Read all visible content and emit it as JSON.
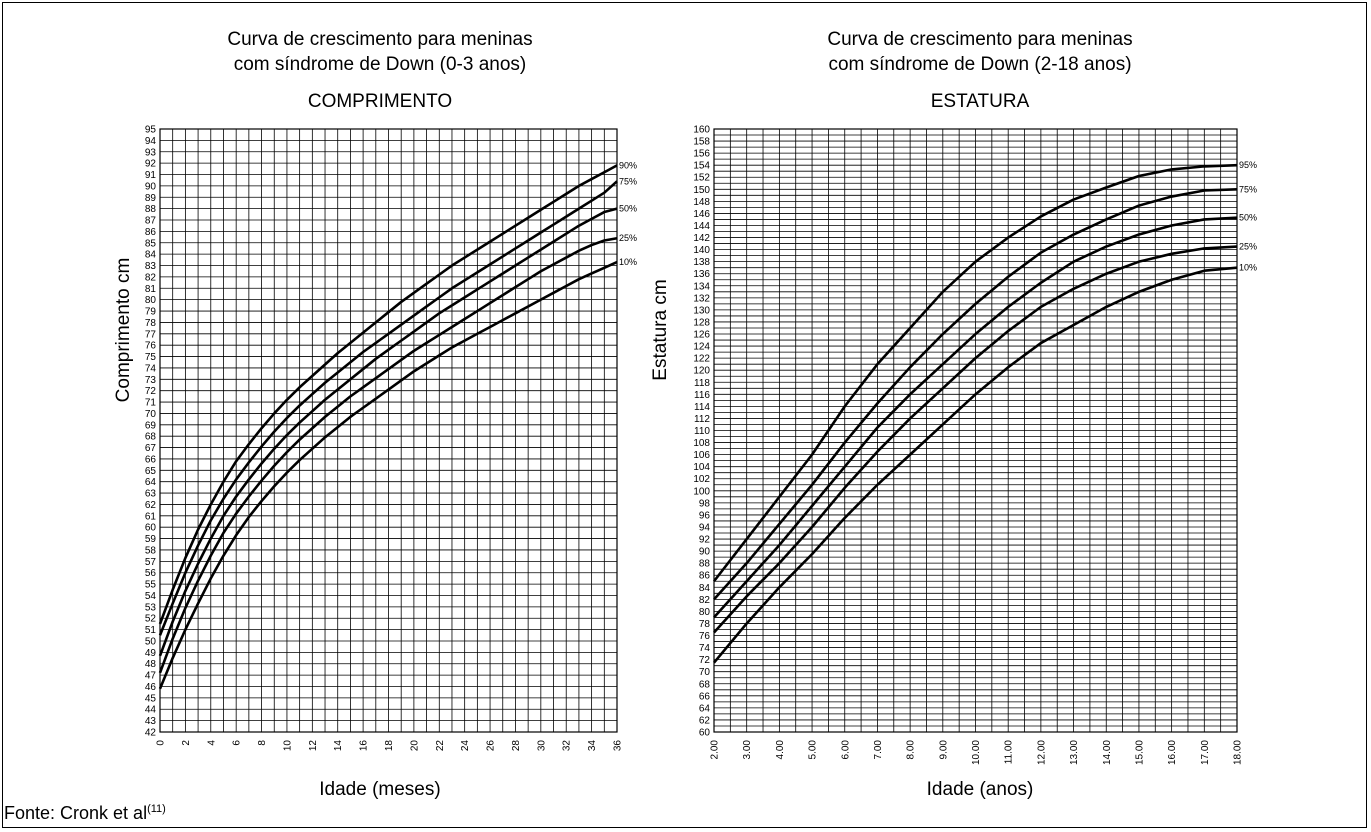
{
  "source": {
    "text": "Fonte: Cronk et al",
    "ref": "(11)"
  },
  "chart_data": [
    {
      "type": "line",
      "title": "Curva de crescimento para meninas com síndrome de Down (0-3 anos)",
      "title_lines": [
        "Curva de crescimento para meninas",
        "com síndrome de Down (0-3 anos)"
      ],
      "subtitle": "COMPRIMENTO",
      "xlabel": "Idade (meses)",
      "ylabel": "Comprimento cm",
      "xlim": [
        0,
        36
      ],
      "ylim": [
        42,
        95
      ],
      "grid": true,
      "x": [
        0,
        1,
        2,
        3,
        4,
        5,
        6,
        7,
        8,
        9,
        10,
        11,
        12,
        13,
        14,
        15,
        16,
        17,
        18,
        19,
        20,
        21,
        22,
        23,
        24,
        25,
        26,
        27,
        28,
        29,
        30,
        31,
        32,
        33,
        34,
        35,
        36
      ],
      "series": [
        {
          "name": "90%",
          "values": [
            51.5,
            54.5,
            57.3,
            59.8,
            62.0,
            64.0,
            65.8,
            67.3,
            68.7,
            70.0,
            71.2,
            72.3,
            73.3,
            74.3,
            75.3,
            76.2,
            77.1,
            78.0,
            78.9,
            79.8,
            80.6,
            81.4,
            82.2,
            83.0,
            83.7,
            84.4,
            85.1,
            85.8,
            86.5,
            87.2,
            87.9,
            88.6,
            89.3,
            90.0,
            90.6,
            91.2,
            91.8
          ]
        },
        {
          "name": "75%",
          "values": [
            50.5,
            53.3,
            56.0,
            58.4,
            60.6,
            62.5,
            64.2,
            65.7,
            67.1,
            68.4,
            69.6,
            70.7,
            71.7,
            72.7,
            73.6,
            74.5,
            75.4,
            76.2,
            77.0,
            77.8,
            78.6,
            79.4,
            80.2,
            81.0,
            81.7,
            82.4,
            83.1,
            83.8,
            84.5,
            85.2,
            85.9,
            86.6,
            87.3,
            88.0,
            88.7,
            89.4,
            90.4
          ]
        },
        {
          "name": "50%",
          "values": [
            48.7,
            51.7,
            54.4,
            56.8,
            59.0,
            61.0,
            62.7,
            64.2,
            65.6,
            66.9,
            68.1,
            69.2,
            70.2,
            71.2,
            72.1,
            73.0,
            73.9,
            74.8,
            75.6,
            76.4,
            77.2,
            78.0,
            78.8,
            79.5,
            80.2,
            80.9,
            81.6,
            82.3,
            83.0,
            83.7,
            84.4,
            85.1,
            85.8,
            86.5,
            87.1,
            87.7,
            88.0
          ]
        },
        {
          "name": "25%",
          "values": [
            47.2,
            50.2,
            52.9,
            55.3,
            57.5,
            59.5,
            61.2,
            62.7,
            64.1,
            65.4,
            66.6,
            67.7,
            68.7,
            69.7,
            70.6,
            71.5,
            72.3,
            73.1,
            73.9,
            74.7,
            75.5,
            76.2,
            76.9,
            77.6,
            78.3,
            79.0,
            79.7,
            80.4,
            81.1,
            81.8,
            82.5,
            83.1,
            83.7,
            84.3,
            84.8,
            85.2,
            85.4
          ]
        },
        {
          "name": "10%",
          "values": [
            45.8,
            48.5,
            51.0,
            53.3,
            55.5,
            57.5,
            59.3,
            60.9,
            62.3,
            63.6,
            64.8,
            65.9,
            66.9,
            67.9,
            68.8,
            69.7,
            70.5,
            71.3,
            72.1,
            72.9,
            73.7,
            74.4,
            75.1,
            75.8,
            76.4,
            77.0,
            77.6,
            78.2,
            78.8,
            79.4,
            80.0,
            80.6,
            81.2,
            81.8,
            82.3,
            82.8,
            83.3
          ]
        }
      ]
    },
    {
      "type": "line",
      "title": "Curva de crescimento para meninas com síndrome de Down (2-18 anos)",
      "title_lines": [
        "Curva de crescimento para meninas",
        "com síndrome de Down (2-18 anos)"
      ],
      "subtitle": "ESTATURA",
      "xlabel": "Idade (anos)",
      "ylabel": "Estatura cm",
      "xlim": [
        2,
        18
      ],
      "ylim": [
        60,
        160
      ],
      "grid": true,
      "x": [
        2,
        3,
        4,
        5,
        6,
        7,
        8,
        9,
        10,
        11,
        12,
        13,
        14,
        15,
        16,
        17,
        18
      ],
      "series": [
        {
          "name": "95%",
          "values": [
            85,
            92,
            99,
            106,
            114,
            121,
            127,
            133,
            138,
            142,
            145.5,
            148.3,
            150.3,
            152.2,
            153.3,
            153.8,
            154
          ]
        },
        {
          "name": "75%",
          "values": [
            82,
            88,
            94.5,
            101,
            108,
            114.5,
            120.5,
            126,
            131,
            135.5,
            139.5,
            142.5,
            145,
            147.3,
            148.8,
            149.8,
            150
          ]
        },
        {
          "name": "50%",
          "values": [
            79,
            85,
            91,
            97.5,
            104,
            110.5,
            116,
            121,
            126,
            130.5,
            134.5,
            138,
            140.5,
            142.5,
            144,
            145,
            145.3
          ]
        },
        {
          "name": "25%",
          "values": [
            76.5,
            82.5,
            88,
            94,
            100.5,
            106.5,
            112,
            117,
            122,
            126.5,
            130.5,
            133.5,
            136,
            138,
            139.3,
            140.2,
            140.5
          ]
        },
        {
          "name": "10%",
          "values": [
            71.5,
            78,
            84,
            89.5,
            95.5,
            101,
            106,
            111,
            116,
            120.5,
            124.5,
            127.5,
            130.5,
            133,
            135,
            136.5,
            137
          ]
        }
      ]
    }
  ]
}
